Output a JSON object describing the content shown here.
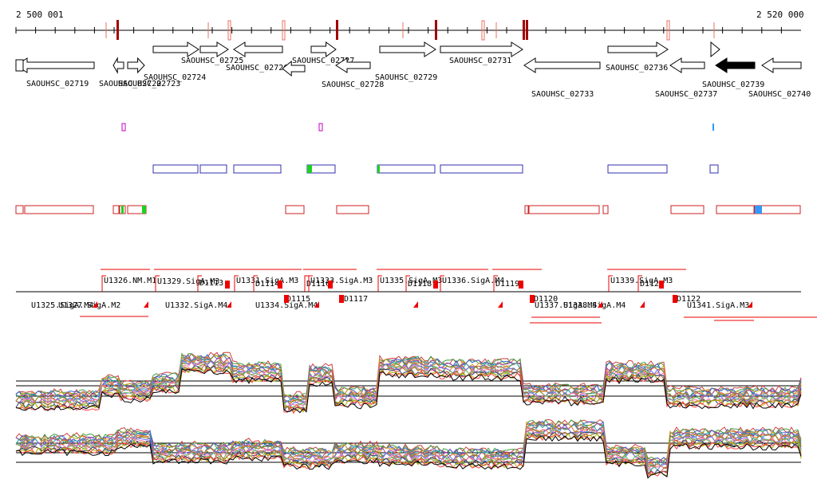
{
  "ruler": {
    "start_label": "2 500 001",
    "end_label": "2 520 000"
  },
  "genes": [
    {
      "label": "SAOUHSC_02719",
      "strand": "-",
      "filled": false
    },
    {
      "label": "SAOUHSC_02722",
      "strand": "-",
      "filled": false
    },
    {
      "label": "SAOUHSC_02723",
      "strand": "+",
      "filled": false
    },
    {
      "label": "SAOUHSC_02724",
      "strand": "+",
      "filled": false
    },
    {
      "label": "SAOUHSC_02725",
      "strand": "+",
      "filled": false
    },
    {
      "label": "SAOUHSC_02726",
      "strand": "-",
      "filled": false
    },
    {
      "label": "SAOUHSC_02727",
      "strand": "+",
      "filled": false
    },
    {
      "label": "SAOUHSC_02728",
      "strand": "-",
      "filled": false
    },
    {
      "label": "SAOUHSC_02729",
      "strand": "+",
      "filled": false
    },
    {
      "label": "SAOUHSC_02731",
      "strand": "+",
      "filled": false
    },
    {
      "label": "SAOUHSC_02733",
      "strand": "-",
      "filled": false
    },
    {
      "label": "SAOUHSC_02736",
      "strand": "+",
      "filled": false
    },
    {
      "label": "SAOUHSC_02737",
      "strand": "-",
      "filled": false
    },
    {
      "label": "SAOUHSC_02739",
      "strand": "-",
      "filled": true
    },
    {
      "label": "SAOUHSC_02740",
      "strand": "-",
      "filled": false
    }
  ],
  "features_above": [
    {
      "label": "U1326.NM.M1"
    },
    {
      "label": "U1329.SigA.M3"
    },
    {
      "label": "D1113"
    },
    {
      "label": "U1331.SigA.M3"
    },
    {
      "label": "D1114"
    },
    {
      "label": "D1116"
    },
    {
      "label": "U1333.SigA.M3"
    },
    {
      "label": "U1335.SigA.M3"
    },
    {
      "label": "D1118"
    },
    {
      "label": "U1336.SigA.M4"
    },
    {
      "label": "D1119"
    },
    {
      "label": "U1339.SigA.M3"
    },
    {
      "label": "D1121"
    }
  ],
  "features_below": [
    {
      "label": "U1325.SigA.M4"
    },
    {
      "label": "U1327.SigA.M2"
    },
    {
      "label": "U1332.SigA.M4"
    },
    {
      "label": "D1115"
    },
    {
      "label": "U1334.SigA.M4"
    },
    {
      "label": "D1117"
    },
    {
      "label": "D1120"
    },
    {
      "label": "U1337.SigA.M4"
    },
    {
      "label": "U1338.SigA.M4"
    },
    {
      "label": "D1122"
    },
    {
      "label": "U1341.SigA.M3"
    }
  ],
  "colors": {
    "gene_outline": "#000000",
    "gene_filled": "#000000",
    "marker_dark_red": "#a00000",
    "marker_light_red": "#e87060",
    "magenta_box": "#c000c0",
    "blue_box": "#3030b0",
    "red_box": "#cc2020",
    "green": "#20d020",
    "light_blue": "#3399ff",
    "feature_red": "#ee0000"
  }
}
